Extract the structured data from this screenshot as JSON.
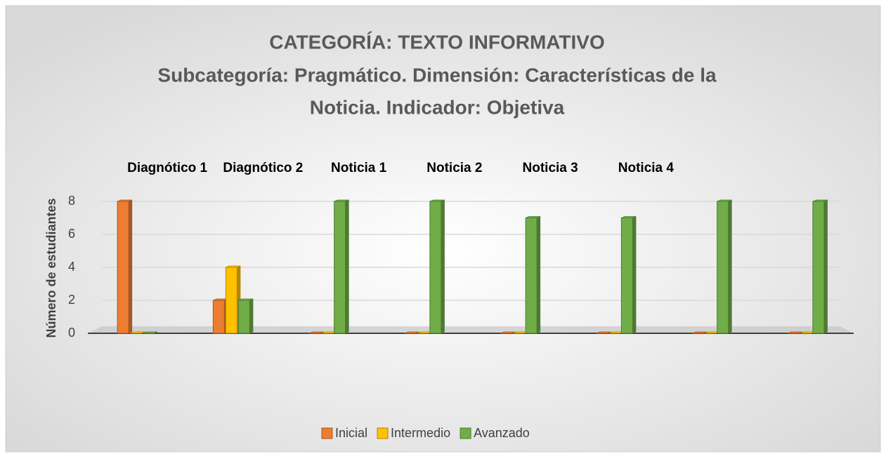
{
  "chart_data": {
    "type": "bar3d",
    "title": "CATEGORÍA: TEXTO INFORMATIVO",
    "subtitle": [
      "Subcategoría:  Pragmático.  Dimensión: Características de la",
      "Noticia. Indicador: Objetiva"
    ],
    "y_label": "Número de estudiantes",
    "categories": [
      "Diagnótico 1",
      "Diagnótico 2",
      "Noticia 1",
      "Noticia 2",
      "Noticia 3",
      "Noticia 4",
      null,
      null
    ],
    "series": [
      {
        "name": "Inicial",
        "color": "#ed7d31",
        "values": [
          8,
          2,
          0,
          0,
          0,
          0,
          0,
          0
        ]
      },
      {
        "name": "Intermedio",
        "color": "#ffc000",
        "values": [
          0,
          4,
          0,
          0,
          0,
          0,
          0,
          0
        ]
      },
      {
        "name": "Avanzado",
        "color": "#70ad47",
        "values": [
          0,
          2,
          8,
          8,
          7,
          7,
          8,
          8
        ]
      }
    ],
    "ylim": [
      0,
      8
    ],
    "yticks": [
      0,
      2,
      4,
      6,
      8
    ],
    "grid": true,
    "legend": "bottom"
  }
}
